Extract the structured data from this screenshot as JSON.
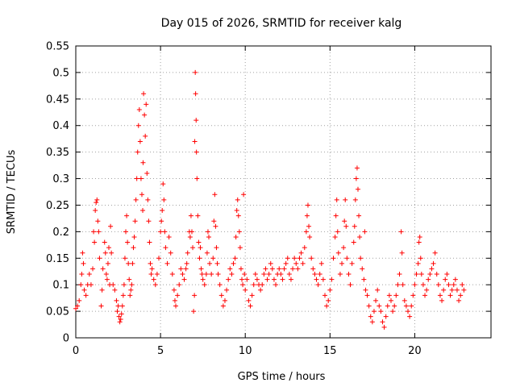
{
  "chart_data": {
    "type": "scatter",
    "title": "Day 015 of 2026, SRMTID for receiver kalg",
    "xlabel": "GPS time / hours",
    "ylabel": "SRMTID / TECUs",
    "xlim": [
      0,
      24.5
    ],
    "ylim": [
      0,
      0.55
    ],
    "grid": true,
    "marker": "plus",
    "marker_color": "#ff0000",
    "x_ticks": [
      0,
      5,
      10,
      15,
      20
    ],
    "x_tick_labels": [
      "0",
      "5",
      "10",
      "15",
      "20"
    ],
    "y_ticks": [
      0,
      0.05,
      0.1,
      0.15,
      0.2,
      0.25,
      0.3,
      0.35,
      0.4,
      0.45,
      0.5,
      0.55
    ],
    "y_tick_labels": [
      "0",
      "0.05",
      "0.1",
      "0.15",
      "0.2",
      "0.25",
      "0.3",
      "0.35",
      "0.4",
      "0.45",
      "0.5",
      "0.55"
    ],
    "series": [
      {
        "name": "SRMTID",
        "points": [
          [
            0.0,
            0.055
          ],
          [
            0.1,
            0.06
          ],
          [
            0.2,
            0.07
          ],
          [
            0.3,
            0.1
          ],
          [
            0.35,
            0.12
          ],
          [
            0.4,
            0.16
          ],
          [
            0.45,
            0.14
          ],
          [
            0.5,
            0.09
          ],
          [
            0.6,
            0.08
          ],
          [
            0.7,
            0.1
          ],
          [
            0.8,
            0.12
          ],
          [
            0.9,
            0.1
          ],
          [
            1.0,
            0.13
          ],
          [
            1.05,
            0.2
          ],
          [
            1.1,
            0.18
          ],
          [
            1.15,
            0.24
          ],
          [
            1.2,
            0.255
          ],
          [
            1.25,
            0.26
          ],
          [
            1.3,
            0.22
          ],
          [
            1.35,
            0.2
          ],
          [
            1.4,
            0.15
          ],
          [
            1.5,
            0.06
          ],
          [
            1.55,
            0.09
          ],
          [
            1.6,
            0.13
          ],
          [
            1.7,
            0.18
          ],
          [
            1.75,
            0.16
          ],
          [
            1.8,
            0.12
          ],
          [
            1.85,
            0.11
          ],
          [
            1.9,
            0.14
          ],
          [
            1.95,
            0.17
          ],
          [
            2.0,
            0.1
          ],
          [
            2.05,
            0.21
          ],
          [
            2.1,
            0.16
          ],
          [
            2.2,
            0.1
          ],
          [
            2.3,
            0.09
          ],
          [
            2.4,
            0.07
          ],
          [
            2.45,
            0.05
          ],
          [
            2.5,
            0.06
          ],
          [
            2.55,
            0.04
          ],
          [
            2.6,
            0.03
          ],
          [
            2.65,
            0.035
          ],
          [
            2.7,
            0.045
          ],
          [
            2.75,
            0.06
          ],
          [
            2.8,
            0.08
          ],
          [
            2.85,
            0.1
          ],
          [
            2.9,
            0.15
          ],
          [
            2.95,
            0.2
          ],
          [
            3.0,
            0.23
          ],
          [
            3.05,
            0.18
          ],
          [
            3.1,
            0.14
          ],
          [
            3.15,
            0.11
          ],
          [
            3.2,
            0.08
          ],
          [
            3.25,
            0.09
          ],
          [
            3.3,
            0.1
          ],
          [
            3.35,
            0.14
          ],
          [
            3.4,
            0.17
          ],
          [
            3.45,
            0.19
          ],
          [
            3.5,
            0.22
          ],
          [
            3.55,
            0.26
          ],
          [
            3.6,
            0.3
          ],
          [
            3.65,
            0.35
          ],
          [
            3.7,
            0.4
          ],
          [
            3.75,
            0.43
          ],
          [
            3.8,
            0.37
          ],
          [
            3.85,
            0.3
          ],
          [
            3.9,
            0.27
          ],
          [
            3.95,
            0.24
          ],
          [
            3.97,
            0.33
          ],
          [
            4.0,
            0.46
          ],
          [
            4.05,
            0.42
          ],
          [
            4.1,
            0.38
          ],
          [
            4.15,
            0.44
          ],
          [
            4.2,
            0.31
          ],
          [
            4.25,
            0.26
          ],
          [
            4.3,
            0.22
          ],
          [
            4.35,
            0.18
          ],
          [
            4.4,
            0.14
          ],
          [
            4.45,
            0.12
          ],
          [
            4.5,
            0.13
          ],
          [
            4.6,
            0.11
          ],
          [
            4.7,
            0.1
          ],
          [
            4.8,
            0.12
          ],
          [
            4.9,
            0.15
          ],
          [
            5.0,
            0.2
          ],
          [
            5.05,
            0.22
          ],
          [
            5.1,
            0.24
          ],
          [
            5.15,
            0.29
          ],
          [
            5.2,
            0.26
          ],
          [
            5.25,
            0.2
          ],
          [
            5.3,
            0.17
          ],
          [
            5.4,
            0.14
          ],
          [
            5.5,
            0.19
          ],
          [
            5.6,
            0.16
          ],
          [
            5.7,
            0.12
          ],
          [
            5.8,
            0.09
          ],
          [
            5.85,
            0.07
          ],
          [
            5.9,
            0.06
          ],
          [
            6.0,
            0.08
          ],
          [
            6.1,
            0.1
          ],
          [
            6.2,
            0.13
          ],
          [
            6.3,
            0.12
          ],
          [
            6.4,
            0.11
          ],
          [
            6.5,
            0.13
          ],
          [
            6.55,
            0.14
          ],
          [
            6.6,
            0.16
          ],
          [
            6.7,
            0.2
          ],
          [
            6.75,
            0.19
          ],
          [
            6.8,
            0.23
          ],
          [
            6.85,
            0.2
          ],
          [
            6.9,
            0.17
          ],
          [
            6.95,
            0.05
          ],
          [
            7.0,
            0.08
          ],
          [
            7.02,
            0.37
          ],
          [
            7.05,
            0.5
          ],
          [
            7.07,
            0.46
          ],
          [
            7.1,
            0.41
          ],
          [
            7.12,
            0.35
          ],
          [
            7.15,
            0.3
          ],
          [
            7.2,
            0.23
          ],
          [
            7.25,
            0.18
          ],
          [
            7.3,
            0.15
          ],
          [
            7.35,
            0.17
          ],
          [
            7.4,
            0.13
          ],
          [
            7.45,
            0.12
          ],
          [
            7.5,
            0.11
          ],
          [
            7.6,
            0.1
          ],
          [
            7.7,
            0.12
          ],
          [
            7.75,
            0.16
          ],
          [
            7.8,
            0.2
          ],
          [
            7.85,
            0.19
          ],
          [
            7.9,
            0.14
          ],
          [
            8.0,
            0.12
          ],
          [
            8.1,
            0.15
          ],
          [
            8.15,
            0.22
          ],
          [
            8.2,
            0.27
          ],
          [
            8.25,
            0.21
          ],
          [
            8.3,
            0.17
          ],
          [
            8.35,
            0.14
          ],
          [
            8.4,
            0.12
          ],
          [
            8.5,
            0.1
          ],
          [
            8.6,
            0.08
          ],
          [
            8.7,
            0.06
          ],
          [
            8.8,
            0.07
          ],
          [
            8.9,
            0.09
          ],
          [
            9.0,
            0.11
          ],
          [
            9.1,
            0.13
          ],
          [
            9.2,
            0.12
          ],
          [
            9.3,
            0.14
          ],
          [
            9.4,
            0.15
          ],
          [
            9.45,
            0.19
          ],
          [
            9.5,
            0.24
          ],
          [
            9.55,
            0.26
          ],
          [
            9.6,
            0.23
          ],
          [
            9.65,
            0.2
          ],
          [
            9.7,
            0.17
          ],
          [
            9.75,
            0.13
          ],
          [
            9.8,
            0.11
          ],
          [
            9.85,
            0.1
          ],
          [
            9.9,
            0.27
          ],
          [
            9.95,
            0.12
          ],
          [
            10.0,
            0.09
          ],
          [
            10.1,
            0.11
          ],
          [
            10.2,
            0.07
          ],
          [
            10.3,
            0.06
          ],
          [
            10.4,
            0.08
          ],
          [
            10.5,
            0.1
          ],
          [
            10.6,
            0.12
          ],
          [
            10.7,
            0.11
          ],
          [
            10.8,
            0.1
          ],
          [
            10.9,
            0.09
          ],
          [
            11.0,
            0.1
          ],
          [
            11.1,
            0.12
          ],
          [
            11.2,
            0.13
          ],
          [
            11.3,
            0.11
          ],
          [
            11.4,
            0.12
          ],
          [
            11.5,
            0.14
          ],
          [
            11.6,
            0.13
          ],
          [
            11.7,
            0.11
          ],
          [
            11.8,
            0.1
          ],
          [
            11.9,
            0.12
          ],
          [
            12.0,
            0.13
          ],
          [
            12.1,
            0.12
          ],
          [
            12.2,
            0.11
          ],
          [
            12.3,
            0.13
          ],
          [
            12.4,
            0.14
          ],
          [
            12.5,
            0.15
          ],
          [
            12.6,
            0.12
          ],
          [
            12.7,
            0.11
          ],
          [
            12.8,
            0.13
          ],
          [
            12.9,
            0.15
          ],
          [
            13.0,
            0.14
          ],
          [
            13.1,
            0.13
          ],
          [
            13.2,
            0.15
          ],
          [
            13.3,
            0.16
          ],
          [
            13.4,
            0.14
          ],
          [
            13.5,
            0.17
          ],
          [
            13.6,
            0.2
          ],
          [
            13.65,
            0.23
          ],
          [
            13.7,
            0.25
          ],
          [
            13.75,
            0.21
          ],
          [
            13.8,
            0.19
          ],
          [
            13.9,
            0.15
          ],
          [
            14.0,
            0.13
          ],
          [
            14.1,
            0.12
          ],
          [
            14.2,
            0.11
          ],
          [
            14.3,
            0.1
          ],
          [
            14.4,
            0.12
          ],
          [
            14.5,
            0.14
          ],
          [
            14.6,
            0.11
          ],
          [
            14.7,
            0.08
          ],
          [
            14.8,
            0.06
          ],
          [
            14.9,
            0.07
          ],
          [
            15.0,
            0.09
          ],
          [
            15.1,
            0.11
          ],
          [
            15.2,
            0.15
          ],
          [
            15.3,
            0.19
          ],
          [
            15.35,
            0.23
          ],
          [
            15.4,
            0.26
          ],
          [
            15.45,
            0.2
          ],
          [
            15.5,
            0.16
          ],
          [
            15.6,
            0.12
          ],
          [
            15.7,
            0.14
          ],
          [
            15.8,
            0.17
          ],
          [
            15.85,
            0.22
          ],
          [
            15.9,
            0.26
          ],
          [
            15.95,
            0.21
          ],
          [
            16.0,
            0.15
          ],
          [
            16.1,
            0.12
          ],
          [
            16.2,
            0.1
          ],
          [
            16.3,
            0.14
          ],
          [
            16.4,
            0.18
          ],
          [
            16.45,
            0.21
          ],
          [
            16.5,
            0.26
          ],
          [
            16.55,
            0.3
          ],
          [
            16.6,
            0.32
          ],
          [
            16.65,
            0.28
          ],
          [
            16.7,
            0.23
          ],
          [
            16.75,
            0.19
          ],
          [
            16.8,
            0.15
          ],
          [
            16.9,
            0.13
          ],
          [
            17.0,
            0.11
          ],
          [
            17.05,
            0.2
          ],
          [
            17.1,
            0.09
          ],
          [
            17.2,
            0.08
          ],
          [
            17.3,
            0.06
          ],
          [
            17.4,
            0.04
          ],
          [
            17.5,
            0.03
          ],
          [
            17.6,
            0.05
          ],
          [
            17.7,
            0.07
          ],
          [
            17.8,
            0.09
          ],
          [
            17.9,
            0.06
          ],
          [
            18.0,
            0.05
          ],
          [
            18.1,
            0.03
          ],
          [
            18.2,
            0.02
          ],
          [
            18.3,
            0.04
          ],
          [
            18.4,
            0.06
          ],
          [
            18.5,
            0.08
          ],
          [
            18.6,
            0.07
          ],
          [
            18.7,
            0.05
          ],
          [
            18.8,
            0.06
          ],
          [
            18.9,
            0.08
          ],
          [
            19.0,
            0.1
          ],
          [
            19.1,
            0.12
          ],
          [
            19.2,
            0.2
          ],
          [
            19.25,
            0.16
          ],
          [
            19.3,
            0.1
          ],
          [
            19.4,
            0.07
          ],
          [
            19.5,
            0.06
          ],
          [
            19.6,
            0.05
          ],
          [
            19.7,
            0.04
          ],
          [
            19.8,
            0.06
          ],
          [
            19.9,
            0.08
          ],
          [
            20.0,
            0.1
          ],
          [
            20.1,
            0.12
          ],
          [
            20.2,
            0.14
          ],
          [
            20.25,
            0.18
          ],
          [
            20.3,
            0.19
          ],
          [
            20.35,
            0.15
          ],
          [
            20.4,
            0.12
          ],
          [
            20.5,
            0.1
          ],
          [
            20.6,
            0.08
          ],
          [
            20.7,
            0.09
          ],
          [
            20.8,
            0.11
          ],
          [
            20.9,
            0.12
          ],
          [
            21.0,
            0.13
          ],
          [
            21.1,
            0.14
          ],
          [
            21.2,
            0.16
          ],
          [
            21.3,
            0.12
          ],
          [
            21.4,
            0.1
          ],
          [
            21.5,
            0.08
          ],
          [
            21.6,
            0.07
          ],
          [
            21.7,
            0.09
          ],
          [
            21.8,
            0.11
          ],
          [
            21.9,
            0.12
          ],
          [
            22.0,
            0.1
          ],
          [
            22.1,
            0.08
          ],
          [
            22.2,
            0.09
          ],
          [
            22.3,
            0.1
          ],
          [
            22.4,
            0.11
          ],
          [
            22.5,
            0.09
          ],
          [
            22.6,
            0.07
          ],
          [
            22.7,
            0.08
          ],
          [
            22.8,
            0.1
          ],
          [
            22.9,
            0.09
          ]
        ]
      }
    ]
  }
}
